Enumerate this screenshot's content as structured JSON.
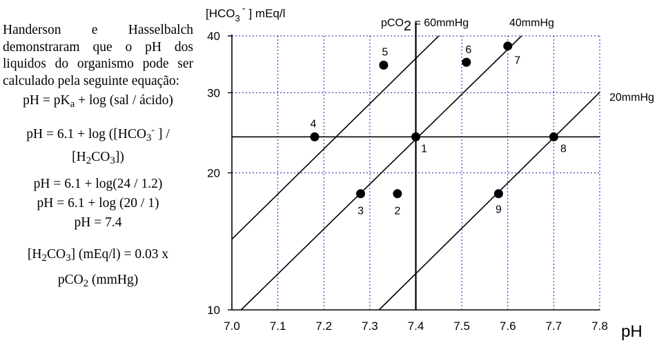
{
  "text_panel": {
    "paragraph": "Handerson e Hasselbalch demonstraram que o pH dos liquidos do organismo pode ser calculado pela seguinte equação:",
    "eq1": {
      "a": "pH = pK",
      "sub": "a",
      "b": " + log (sal / ácido)"
    },
    "eq2": {
      "a": "pH = 6.1 + log ([HCO",
      "sub": "3",
      "sup": "-",
      "b": " ] /"
    },
    "eq2b": {
      "a": "[H",
      "sub1": "2",
      "b": "CO",
      "sub2": "3",
      "c": "])"
    },
    "eq3": "pH = 6.1 + log(24 / 1.2)",
    "eq4": "pH = 6.1 + log (20 / 1)",
    "eq5": "pH = 7.4",
    "eq6": {
      "a": "[H",
      "sub1": "2",
      "b": "CO",
      "sub2": "3",
      "c": "] (mEq/l) = 0.03 x"
    },
    "eq7": {
      "a": "pCO",
      "sub": "2",
      "b": " (mmHg)"
    }
  },
  "chart_data": {
    "type": "scatter",
    "y_axis_title": {
      "a": "[HCO",
      "sub": "3",
      "sup": "-",
      "b": " ]  mEq/l"
    },
    "x_axis_title": "pH",
    "xlim": [
      7.0,
      7.8
    ],
    "ylim": [
      10,
      40
    ],
    "y_scale": "log",
    "grid": "dotted",
    "x_ticks": [
      "7.0",
      "7.1",
      "7.2",
      "7.3",
      "7.4",
      "7.5",
      "7.6",
      "7.7",
      "7.8"
    ],
    "y_ticks": [
      "10",
      "20",
      "30",
      "40"
    ],
    "y_tick_values": [
      10,
      20,
      30,
      40
    ],
    "isobar_labels": {
      "pco2_60": {
        "a": "pCO",
        "sub": "2",
        "b": " = 60mmHg"
      },
      "pco2_40": "40mmHg",
      "pco2_20": "20mmHg"
    },
    "isobars": [
      {
        "pco2": 60,
        "x_start": 7.0,
        "x_end": 7.45
      },
      {
        "pco2": 40,
        "x_start": 7.02,
        "x_end": 7.63
      },
      {
        "pco2": 20,
        "x_start": 7.32,
        "x_end": 7.8
      }
    ],
    "reference_lines": {
      "vertical_ph": 7.4,
      "horizontal_hco3": 24
    },
    "points": [
      {
        "label": "1",
        "x": 7.4,
        "y": 24
      },
      {
        "label": "2",
        "x": 7.36,
        "y": 18
      },
      {
        "label": "3",
        "x": 7.28,
        "y": 18
      },
      {
        "label": "4",
        "x": 7.18,
        "y": 24
      },
      {
        "label": "5",
        "x": 7.33,
        "y": 34.5
      },
      {
        "label": "6",
        "x": 7.51,
        "y": 35
      },
      {
        "label": "7",
        "x": 7.6,
        "y": 38
      },
      {
        "label": "8",
        "x": 7.7,
        "y": 24
      },
      {
        "label": "9",
        "x": 7.58,
        "y": 18
      }
    ]
  }
}
